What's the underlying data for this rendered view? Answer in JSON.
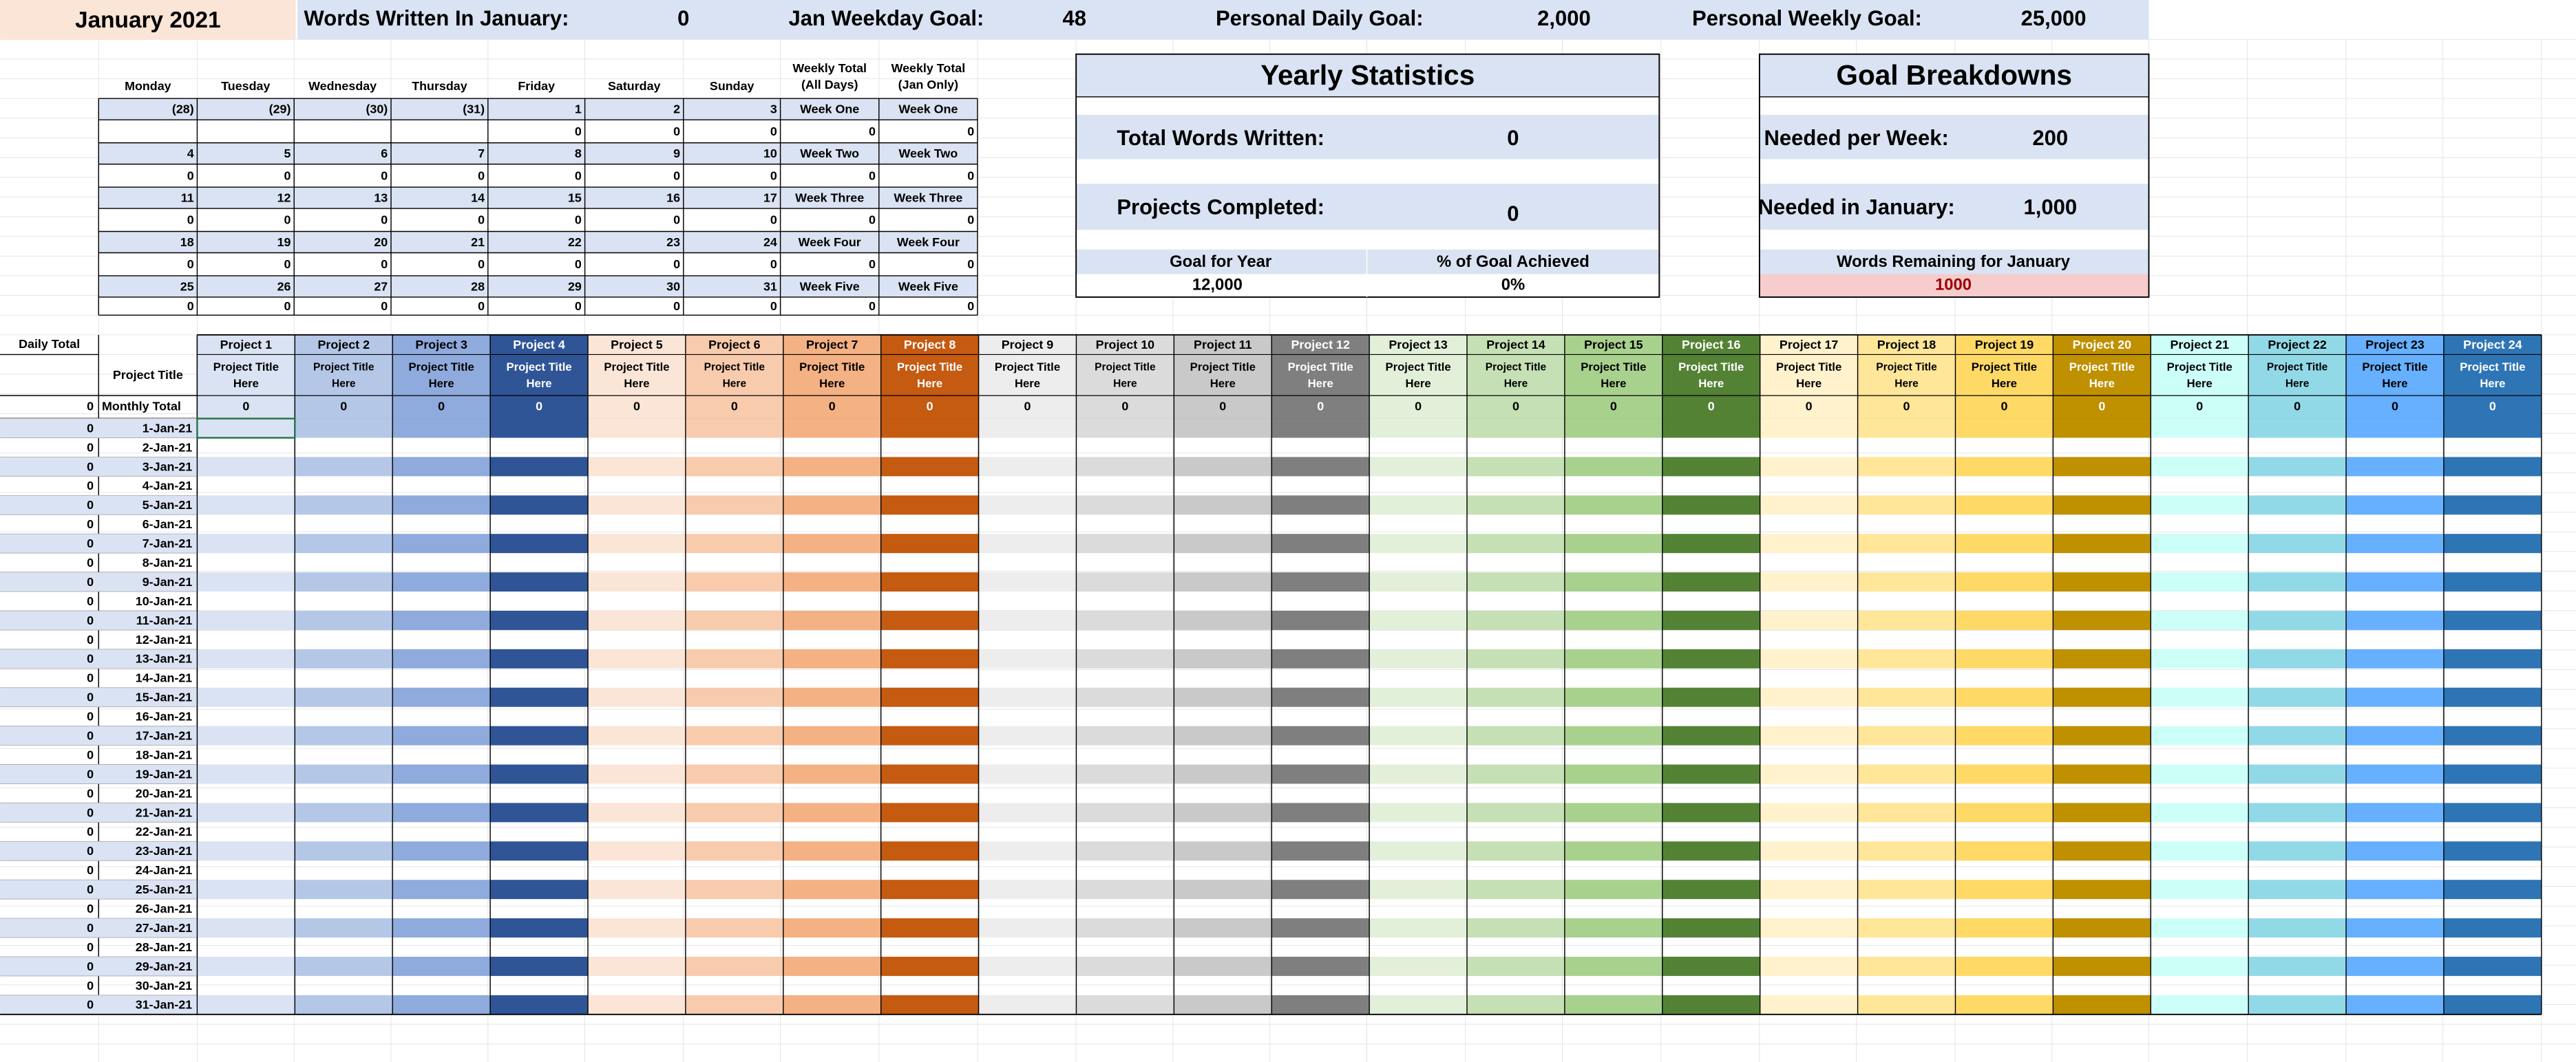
{
  "header": {
    "title": "January 2021",
    "words_label": "Words Written In January:",
    "words_value": 0,
    "weekday_goal_label": "Jan Weekday Goal:",
    "weekday_goal_value": 48,
    "daily_goal_label": "Personal Daily Goal:",
    "daily_goal_value": "2,000",
    "weekly_goal_label": "Personal Weekly Goal:",
    "weekly_goal_value": "25,000"
  },
  "calendar": {
    "headers": [
      "Monday",
      "Tuesday",
      "Wednesday",
      "Thursday",
      "Friday",
      "Saturday",
      "Sunday",
      [
        "Weekly Total",
        "(All Days)"
      ],
      [
        "Weekly Total",
        "(Jan Only)"
      ]
    ],
    "rows": [
      [
        "(28)",
        "(29)",
        "(30)",
        "(31)",
        1,
        2,
        3,
        "Week One",
        "Week One"
      ],
      [
        null,
        null,
        null,
        null,
        0,
        0,
        0,
        0,
        0
      ],
      [
        4,
        5,
        6,
        7,
        8,
        9,
        10,
        "Week Two",
        "Week Two"
      ],
      [
        0,
        0,
        0,
        0,
        0,
        0,
        0,
        0,
        0
      ],
      [
        11,
        12,
        13,
        14,
        15,
        16,
        17,
        "Week Three",
        "Week Three"
      ],
      [
        0,
        0,
        0,
        0,
        0,
        0,
        0,
        0,
        0
      ],
      [
        18,
        19,
        20,
        21,
        22,
        23,
        24,
        "Week Four",
        "Week Four"
      ],
      [
        0,
        0,
        0,
        0,
        0,
        0,
        0,
        0,
        0
      ],
      [
        25,
        26,
        27,
        28,
        29,
        30,
        31,
        "Week Five",
        "Week Five"
      ],
      [
        0,
        0,
        0,
        0,
        0,
        0,
        0,
        0,
        0
      ]
    ]
  },
  "yearly": {
    "title": "Yearly Statistics",
    "total_label": "Total Words Written:",
    "total_value": 0,
    "projects_label": "Projects Completed:",
    "projects_value": 0,
    "goal_label": "Goal for Year",
    "goal_value": "12,000",
    "achieved_label": "% of Goal Achieved",
    "achieved_value": "0%"
  },
  "goals": {
    "title": "Goal Breakdowns",
    "week_label": "Needed per Week:",
    "week_value": 200,
    "month_label": "Needed in January:",
    "month_value": "1,000",
    "remaining_label": "Words Remaining for January",
    "remaining_value": 1000
  },
  "table": {
    "daily_total_label": "Daily Total",
    "project_title_label": "Project Title",
    "monthly_total_label": "Monthly Total",
    "monthly_total": 0,
    "projects": [
      {
        "name": "Project 1",
        "title": [
          "Project Title",
          "Here"
        ],
        "total": 0,
        "color": "#dae3f3",
        "text_color": "#000000"
      },
      {
        "name": "Project 2",
        "title": [
          "Project Title",
          "Here"
        ],
        "total": 0,
        "color": "#b4c7e7",
        "text_color": "#000000"
      },
      {
        "name": "Project 3",
        "title": [
          "Project Title",
          "Here"
        ],
        "total": 0,
        "color": "#8faadc",
        "text_color": "#000000"
      },
      {
        "name": "Project 4",
        "title": [
          "Project Title",
          "Here"
        ],
        "total": 0,
        "color": "#2f5597",
        "text_color": "#ffffff"
      },
      {
        "name": "Project 5",
        "title": [
          "Project Title",
          "Here"
        ],
        "total": 0,
        "color": "#fbe5d6",
        "text_color": "#000000"
      },
      {
        "name": "Project 6",
        "title": [
          "Project Title",
          "Here"
        ],
        "total": 0,
        "color": "#f8cbad",
        "text_color": "#000000"
      },
      {
        "name": "Project 7",
        "title": [
          "Project Title",
          "Here"
        ],
        "total": 0,
        "color": "#f4b183",
        "text_color": "#000000"
      },
      {
        "name": "Project 8",
        "title": [
          "Project Title",
          "Here"
        ],
        "total": 0,
        "color": "#c55a11",
        "text_color": "#ffffff"
      },
      {
        "name": "Project 9",
        "title": [
          "Project Title",
          "Here"
        ],
        "total": 0,
        "color": "#ededed",
        "text_color": "#000000"
      },
      {
        "name": "Project 10",
        "title": [
          "Project Title",
          "Here"
        ],
        "total": 0,
        "color": "#dbdbdb",
        "text_color": "#000000"
      },
      {
        "name": "Project 11",
        "title": [
          "Project Title",
          "Here"
        ],
        "total": 0,
        "color": "#c9c9c9",
        "text_color": "#000000"
      },
      {
        "name": "Project 12",
        "title": [
          "Project Title",
          "Here"
        ],
        "total": 0,
        "color": "#7f7f7f",
        "text_color": "#ffffff"
      },
      {
        "name": "Project 13",
        "title": [
          "Project Title",
          "Here"
        ],
        "total": 0,
        "color": "#e2f0d9",
        "text_color": "#000000"
      },
      {
        "name": "Project 14",
        "title": [
          "Project Title",
          "Here"
        ],
        "total": 0,
        "color": "#c5e0b4",
        "text_color": "#000000"
      },
      {
        "name": "Project 15",
        "title": [
          "Project Title",
          "Here"
        ],
        "total": 0,
        "color": "#a9d18e",
        "text_color": "#000000"
      },
      {
        "name": "Project 16",
        "title": [
          "Project Title",
          "Here"
        ],
        "total": 0,
        "color": "#548235",
        "text_color": "#ffffff"
      },
      {
        "name": "Project 17",
        "title": [
          "Project Title",
          "Here"
        ],
        "total": 0,
        "color": "#fff2cc",
        "text_color": "#000000"
      },
      {
        "name": "Project 18",
        "title": [
          "Project Title",
          "Here"
        ],
        "total": 0,
        "color": "#ffe699",
        "text_color": "#000000"
      },
      {
        "name": "Project 19",
        "title": [
          "Project Title",
          "Here"
        ],
        "total": 0,
        "color": "#ffd966",
        "text_color": "#000000"
      },
      {
        "name": "Project 20",
        "title": [
          "Project Title",
          "Here"
        ],
        "total": 0,
        "color": "#bf9000",
        "text_color": "#ffffff"
      },
      {
        "name": "Project 21",
        "title": [
          "Project Title",
          "Here"
        ],
        "total": 0,
        "color": "#ccfff7",
        "text_color": "#000000"
      },
      {
        "name": "Project 22",
        "title": [
          "Project Title",
          "Here"
        ],
        "total": 0,
        "color": "#92d9e8",
        "text_color": "#000000"
      },
      {
        "name": "Project 23",
        "title": [
          "Project Title",
          "Here"
        ],
        "total": 0,
        "color": "#66b0ff",
        "text_color": "#000000"
      },
      {
        "name": "Project 24",
        "title": [
          "Project Title",
          "Here"
        ],
        "total": 0,
        "color": "#2e75b6",
        "text_color": "#ffffff"
      }
    ],
    "rows": [
      {
        "total": 0,
        "date": "1-Jan-21"
      },
      {
        "total": 0,
        "date": "2-Jan-21"
      },
      {
        "total": 0,
        "date": "3-Jan-21"
      },
      {
        "total": 0,
        "date": "4-Jan-21"
      },
      {
        "total": 0,
        "date": "5-Jan-21"
      },
      {
        "total": 0,
        "date": "6-Jan-21"
      },
      {
        "total": 0,
        "date": "7-Jan-21"
      },
      {
        "total": 0,
        "date": "8-Jan-21"
      },
      {
        "total": 0,
        "date": "9-Jan-21"
      },
      {
        "total": 0,
        "date": "10-Jan-21"
      },
      {
        "total": 0,
        "date": "11-Jan-21"
      },
      {
        "total": 0,
        "date": "12-Jan-21"
      },
      {
        "total": 0,
        "date": "13-Jan-21"
      },
      {
        "total": 0,
        "date": "14-Jan-21"
      },
      {
        "total": 0,
        "date": "15-Jan-21"
      },
      {
        "total": 0,
        "date": "16-Jan-21"
      },
      {
        "total": 0,
        "date": "17-Jan-21"
      },
      {
        "total": 0,
        "date": "18-Jan-21"
      },
      {
        "total": 0,
        "date": "19-Jan-21"
      },
      {
        "total": 0,
        "date": "20-Jan-21"
      },
      {
        "total": 0,
        "date": "21-Jan-21"
      },
      {
        "total": 0,
        "date": "22-Jan-21"
      },
      {
        "total": 0,
        "date": "23-Jan-21"
      },
      {
        "total": 0,
        "date": "24-Jan-21"
      },
      {
        "total": 0,
        "date": "25-Jan-21"
      },
      {
        "total": 0,
        "date": "26-Jan-21"
      },
      {
        "total": 0,
        "date": "27-Jan-21"
      },
      {
        "total": 0,
        "date": "28-Jan-21"
      },
      {
        "total": 0,
        "date": "29-Jan-21"
      },
      {
        "total": 0,
        "date": "30-Jan-21"
      },
      {
        "total": 0,
        "date": "31-Jan-21"
      }
    ]
  }
}
